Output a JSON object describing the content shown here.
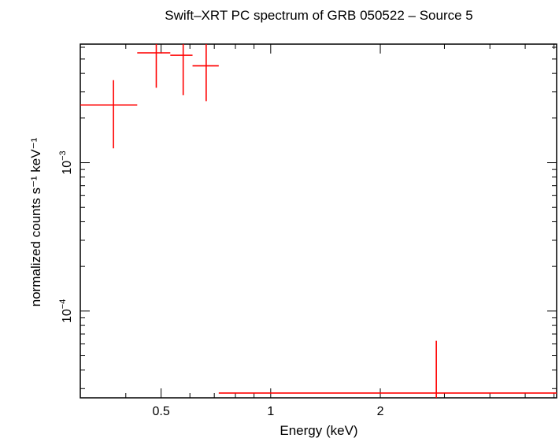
{
  "chart_data": {
    "type": "scatter",
    "title": "Swift–XRT PC spectrum of GRB 050522 – Source 5",
    "xlabel": "Energy (keV)",
    "ylabel": "normalized counts s⁻¹ keV⁻¹",
    "x_scale": "log",
    "y_scale": "log",
    "xlim": [
      0.3,
      6.1
    ],
    "ylim": [
      2.6e-05,
      0.0063
    ],
    "x_ticks": [
      {
        "value": 0.5,
        "label": "0.5"
      },
      {
        "value": 1,
        "label": "1"
      },
      {
        "value": 2,
        "label": "2"
      }
    ],
    "y_ticks": [
      {
        "value": 0.001,
        "label_base": "10",
        "label_exp": "−3"
      },
      {
        "value": 0.0001,
        "label_base": "10",
        "label_exp": "−4"
      }
    ],
    "series": [
      {
        "color": "#ff0000",
        "points": [
          {
            "x": 0.37,
            "xlo": 0.3,
            "xhi": 0.43,
            "y": 0.00245,
            "ylo": 0.00125,
            "yhi": 0.0036
          },
          {
            "x": 0.485,
            "xlo": 0.43,
            "xhi": 0.53,
            "y": 0.0055,
            "ylo": 0.0032,
            "yhi": 0.0063
          },
          {
            "x": 0.575,
            "xlo": 0.53,
            "xhi": 0.61,
            "y": 0.0053,
            "ylo": 0.00285,
            "yhi": 0.0063
          },
          {
            "x": 0.665,
            "xlo": 0.61,
            "xhi": 0.72,
            "y": 0.0045,
            "ylo": 0.0026,
            "yhi": 0.0063
          },
          {
            "x": 2.85,
            "xlo": 0.72,
            "xhi": 6.1,
            "y": 2.8e-05,
            "ylo": 2.6e-05,
            "yhi": 6.3e-05
          }
        ]
      }
    ]
  }
}
